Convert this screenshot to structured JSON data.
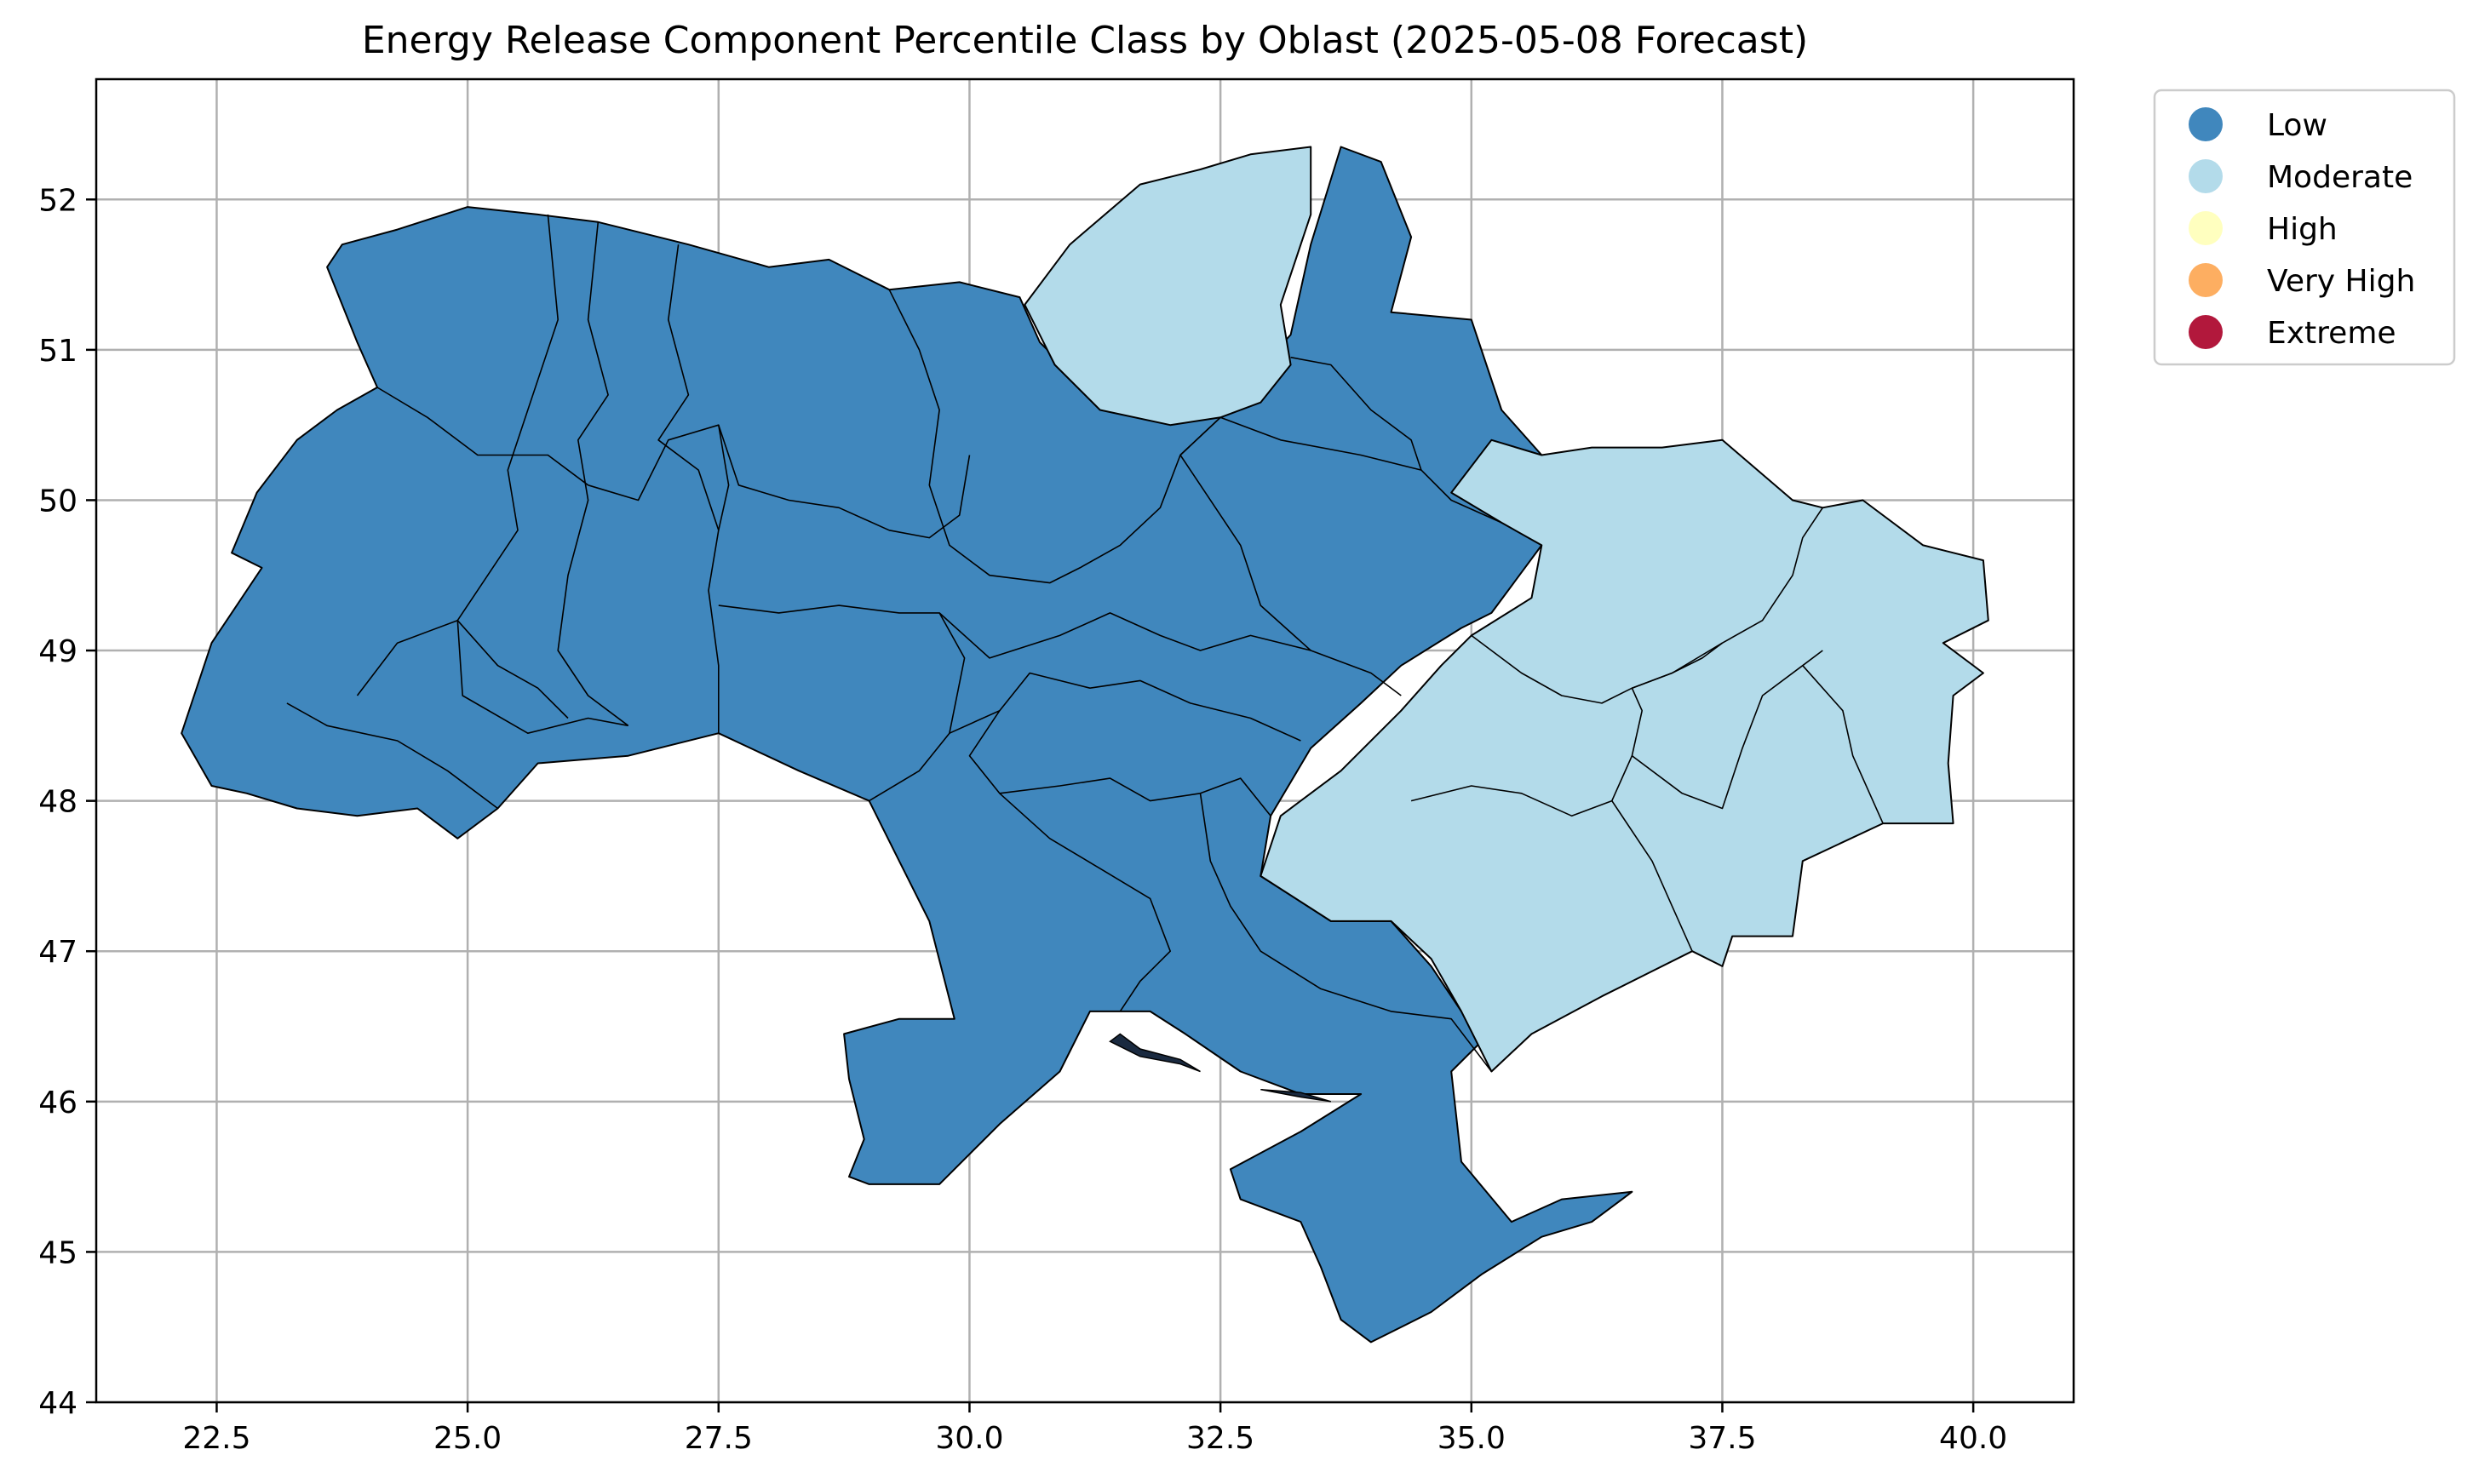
{
  "title": "Energy Release Component Percentile Class by Oblast (2025-05-08 Forecast)",
  "axes": {
    "xlim": [
      21.3,
      41.0
    ],
    "ylim": [
      44.0,
      52.8
    ],
    "xticks": [
      22.5,
      25.0,
      27.5,
      30.0,
      32.5,
      35.0,
      37.5,
      40.0
    ],
    "xtick_labels": [
      "22.5",
      "25.0",
      "27.5",
      "30.0",
      "32.5",
      "35.0",
      "37.5",
      "40.0"
    ],
    "yticks": [
      44,
      45,
      46,
      47,
      48,
      49,
      50,
      51,
      52
    ],
    "ytick_labels": [
      "44",
      "45",
      "46",
      "47",
      "48",
      "49",
      "50",
      "51",
      "52"
    ],
    "grid": true
  },
  "legend": {
    "placement": "upper-right-outside",
    "entries": [
      {
        "label": "Low",
        "color": "#4087bd"
      },
      {
        "label": "Moderate",
        "color": "#b3dbea"
      },
      {
        "label": "High",
        "color": "#ffffbf"
      },
      {
        "label": "Very High",
        "color": "#fdae61"
      },
      {
        "label": "Extreme",
        "color": "#b2183c"
      }
    ]
  },
  "colors": {
    "Low": "#4087bd",
    "Moderate": "#b3dbea",
    "border": "#000000",
    "grid": "#b0b0b0"
  },
  "regions": [
    {
      "class": "Low",
      "points": [
        [
          22.15,
          48.45
        ],
        [
          22.45,
          49.05
        ],
        [
          22.7,
          49.3
        ],
        [
          22.95,
          49.55
        ],
        [
          22.65,
          49.65
        ],
        [
          22.9,
          50.05
        ],
        [
          23.3,
          50.4
        ],
        [
          23.7,
          50.6
        ],
        [
          24.1,
          50.75
        ],
        [
          23.9,
          51.05
        ],
        [
          23.6,
          51.55
        ],
        [
          23.75,
          51.7
        ],
        [
          24.3,
          51.8
        ],
        [
          25.0,
          51.95
        ],
        [
          25.7,
          51.9
        ],
        [
          26.3,
          51.85
        ],
        [
          27.2,
          51.7
        ],
        [
          28.0,
          51.55
        ],
        [
          28.6,
          51.6
        ],
        [
          29.2,
          51.4
        ],
        [
          29.9,
          51.45
        ],
        [
          30.5,
          51.35
        ],
        [
          30.7,
          51.05
        ],
        [
          31.3,
          50.65
        ],
        [
          32.1,
          50.55
        ],
        [
          32.5,
          50.6
        ],
        [
          33.2,
          51.1
        ],
        [
          33.4,
          51.7
        ],
        [
          33.7,
          52.35
        ],
        [
          34.1,
          52.25
        ],
        [
          34.4,
          51.75
        ],
        [
          34.2,
          51.25
        ],
        [
          35.0,
          51.2
        ],
        [
          35.3,
          50.6
        ],
        [
          35.7,
          50.3
        ],
        [
          35.7,
          49.7
        ],
        [
          35.2,
          49.25
        ],
        [
          34.9,
          49.15
        ],
        [
          34.3,
          48.9
        ],
        [
          33.9,
          48.65
        ],
        [
          33.4,
          48.35
        ],
        [
          33.0,
          47.9
        ],
        [
          32.9,
          47.5
        ],
        [
          33.6,
          47.2
        ],
        [
          34.2,
          47.2
        ],
        [
          34.6,
          46.9
        ],
        [
          35.1,
          46.4
        ],
        [
          34.8,
          46.2
        ],
        [
          34.9,
          45.6
        ],
        [
          35.4,
          45.2
        ],
        [
          35.9,
          45.35
        ],
        [
          36.6,
          45.4
        ],
        [
          36.2,
          45.2
        ],
        [
          35.7,
          45.1
        ],
        [
          35.1,
          44.85
        ],
        [
          34.6,
          44.6
        ],
        [
          34.0,
          44.4
        ],
        [
          33.7,
          44.55
        ],
        [
          33.5,
          44.9
        ],
        [
          33.3,
          45.2
        ],
        [
          32.7,
          45.35
        ],
        [
          32.6,
          45.55
        ],
        [
          33.3,
          45.8
        ],
        [
          33.9,
          46.05
        ],
        [
          33.3,
          46.05
        ],
        [
          32.7,
          46.2
        ],
        [
          32.15,
          46.45
        ],
        [
          31.8,
          46.6
        ],
        [
          31.5,
          46.6
        ],
        [
          31.2,
          46.6
        ],
        [
          30.9,
          46.2
        ],
        [
          30.3,
          45.85
        ],
        [
          29.7,
          45.45
        ],
        [
          29.0,
          45.45
        ],
        [
          28.8,
          45.5
        ],
        [
          28.95,
          45.75
        ],
        [
          28.8,
          46.15
        ],
        [
          28.75,
          46.45
        ],
        [
          29.3,
          46.55
        ],
        [
          29.85,
          46.55
        ],
        [
          29.6,
          47.2
        ],
        [
          29.3,
          47.6
        ],
        [
          29.0,
          48.0
        ],
        [
          28.3,
          48.2
        ],
        [
          27.5,
          48.45
        ],
        [
          26.6,
          48.3
        ],
        [
          25.7,
          48.25
        ],
        [
          25.3,
          47.95
        ],
        [
          24.9,
          47.75
        ],
        [
          24.5,
          47.95
        ],
        [
          23.9,
          47.9
        ],
        [
          23.3,
          47.95
        ],
        [
          22.8,
          48.05
        ],
        [
          22.45,
          48.1
        ],
        [
          22.15,
          48.45
        ]
      ]
    },
    {
      "class": "Moderate",
      "points": [
        [
          30.55,
          51.3
        ],
        [
          31.0,
          51.7
        ],
        [
          31.7,
          52.1
        ],
        [
          32.3,
          52.2
        ],
        [
          32.8,
          52.3
        ],
        [
          33.4,
          52.35
        ],
        [
          33.4,
          51.9
        ],
        [
          33.1,
          51.3
        ],
        [
          33.2,
          50.9
        ],
        [
          32.9,
          50.65
        ],
        [
          32.5,
          50.55
        ],
        [
          32.0,
          50.5
        ],
        [
          31.3,
          50.6
        ],
        [
          30.85,
          50.9
        ],
        [
          30.55,
          51.3
        ]
      ]
    },
    {
      "class": "Moderate",
      "points": [
        [
          34.8,
          50.05
        ],
        [
          35.2,
          50.4
        ],
        [
          35.7,
          50.3
        ],
        [
          36.2,
          50.35
        ],
        [
          36.9,
          50.35
        ],
        [
          37.5,
          50.4
        ],
        [
          38.2,
          50.0
        ],
        [
          38.5,
          49.95
        ],
        [
          38.9,
          50.0
        ],
        [
          39.5,
          49.7
        ],
        [
          40.1,
          49.6
        ],
        [
          40.15,
          49.2
        ],
        [
          39.7,
          49.05
        ],
        [
          40.1,
          48.85
        ],
        [
          39.8,
          48.7
        ],
        [
          39.75,
          48.25
        ],
        [
          39.8,
          47.85
        ],
        [
          39.1,
          47.85
        ],
        [
          38.3,
          47.6
        ],
        [
          38.2,
          47.1
        ],
        [
          37.6,
          47.1
        ],
        [
          37.5,
          46.9
        ],
        [
          37.2,
          47.0
        ],
        [
          36.3,
          46.7
        ],
        [
          35.6,
          46.45
        ],
        [
          35.2,
          46.2
        ],
        [
          34.9,
          46.6
        ],
        [
          34.6,
          46.95
        ],
        [
          34.2,
          47.2
        ],
        [
          33.6,
          47.2
        ],
        [
          32.9,
          47.5
        ],
        [
          33.1,
          47.9
        ],
        [
          33.7,
          48.2
        ],
        [
          34.3,
          48.6
        ],
        [
          34.7,
          48.9
        ],
        [
          35.0,
          49.1
        ],
        [
          35.6,
          49.35
        ],
        [
          35.7,
          49.7
        ],
        [
          35.3,
          49.85
        ],
        [
          34.8,
          50.05
        ]
      ]
    }
  ],
  "borders": [
    [
      [
        25.8,
        51.9
      ],
      [
        25.9,
        51.2
      ],
      [
        25.6,
        50.6
      ],
      [
        25.4,
        50.2
      ],
      [
        25.5,
        49.8
      ],
      [
        25.2,
        49.5
      ],
      [
        24.9,
        49.2
      ],
      [
        24.3,
        49.05
      ],
      [
        23.9,
        48.7
      ]
    ],
    [
      [
        24.1,
        50.75
      ],
      [
        24.6,
        50.55
      ],
      [
        25.1,
        50.3
      ],
      [
        25.8,
        50.3
      ],
      [
        26.2,
        50.1
      ]
    ],
    [
      [
        26.3,
        51.85
      ],
      [
        26.2,
        51.2
      ],
      [
        26.4,
        50.7
      ],
      [
        26.1,
        50.4
      ],
      [
        26.2,
        50.0
      ],
      [
        26.0,
        49.5
      ],
      [
        25.9,
        49.0
      ],
      [
        26.2,
        48.7
      ],
      [
        26.6,
        48.5
      ]
    ],
    [
      [
        27.1,
        51.7
      ],
      [
        27.0,
        51.2
      ],
      [
        27.2,
        50.7
      ],
      [
        26.9,
        50.4
      ],
      [
        27.3,
        50.2
      ],
      [
        27.5,
        49.8
      ]
    ],
    [
      [
        26.2,
        50.1
      ],
      [
        26.7,
        50.0
      ],
      [
        27.0,
        50.4
      ],
      [
        27.5,
        50.5
      ],
      [
        27.6,
        50.1
      ],
      [
        27.5,
        49.8
      ],
      [
        27.4,
        49.4
      ],
      [
        27.5,
        48.9
      ],
      [
        27.5,
        48.45
      ]
    ],
    [
      [
        24.9,
        49.2
      ],
      [
        24.95,
        48.7
      ],
      [
        25.6,
        48.45
      ],
      [
        26.2,
        48.55
      ],
      [
        26.6,
        48.5
      ]
    ],
    [
      [
        24.9,
        49.2
      ],
      [
        25.3,
        48.9
      ],
      [
        25.7,
        48.75
      ],
      [
        26.0,
        48.55
      ]
    ],
    [
      [
        23.2,
        48.65
      ],
      [
        23.6,
        48.5
      ],
      [
        24.3,
        48.4
      ],
      [
        24.8,
        48.2
      ],
      [
        25.3,
        47.95
      ]
    ],
    [
      [
        27.5,
        50.5
      ],
      [
        27.7,
        50.1
      ],
      [
        28.2,
        50.0
      ],
      [
        28.7,
        49.95
      ],
      [
        29.2,
        49.8
      ],
      [
        29.6,
        49.75
      ],
      [
        29.9,
        49.9
      ],
      [
        30.0,
        50.3
      ]
    ],
    [
      [
        29.2,
        51.4
      ],
      [
        29.5,
        51.0
      ],
      [
        29.7,
        50.6
      ],
      [
        29.6,
        50.1
      ],
      [
        29.8,
        49.7
      ],
      [
        30.2,
        49.5
      ],
      [
        30.8,
        49.45
      ],
      [
        31.1,
        49.55
      ],
      [
        31.5,
        49.7
      ],
      [
        31.9,
        49.95
      ],
      [
        32.1,
        50.3
      ],
      [
        32.5,
        50.55
      ]
    ],
    [
      [
        27.5,
        49.3
      ],
      [
        28.1,
        49.25
      ],
      [
        28.7,
        49.3
      ],
      [
        29.3,
        49.25
      ],
      [
        29.7,
        49.25
      ],
      [
        29.95,
        48.95
      ],
      [
        29.8,
        48.45
      ],
      [
        29.5,
        48.2
      ],
      [
        29.0,
        48.0
      ]
    ],
    [
      [
        29.7,
        49.25
      ],
      [
        30.2,
        48.95
      ],
      [
        30.9,
        49.1
      ],
      [
        31.4,
        49.25
      ],
      [
        31.9,
        49.1
      ],
      [
        32.3,
        49.0
      ],
      [
        32.8,
        49.1
      ],
      [
        33.4,
        49.0
      ],
      [
        34.0,
        48.85
      ],
      [
        34.3,
        48.7
      ]
    ],
    [
      [
        30.3,
        48.6
      ],
      [
        30.6,
        48.85
      ],
      [
        31.2,
        48.75
      ],
      [
        31.7,
        48.8
      ],
      [
        32.2,
        48.65
      ],
      [
        32.8,
        48.55
      ],
      [
        33.3,
        48.4
      ]
    ],
    [
      [
        29.8,
        48.45
      ],
      [
        30.3,
        48.6
      ],
      [
        30.0,
        48.3
      ],
      [
        30.3,
        48.05
      ],
      [
        30.8,
        47.75
      ],
      [
        31.3,
        47.55
      ],
      [
        31.8,
        47.35
      ],
      [
        32.0,
        47.0
      ],
      [
        31.7,
        46.8
      ],
      [
        31.5,
        46.6
      ]
    ],
    [
      [
        30.3,
        48.05
      ],
      [
        30.9,
        48.1
      ],
      [
        31.4,
        48.15
      ],
      [
        31.8,
        48.0
      ],
      [
        32.3,
        48.05
      ],
      [
        32.7,
        48.15
      ],
      [
        33.0,
        47.9
      ]
    ],
    [
      [
        32.3,
        48.05
      ],
      [
        32.4,
        47.6
      ],
      [
        32.6,
        47.3
      ],
      [
        32.9,
        47.0
      ],
      [
        33.5,
        46.75
      ],
      [
        34.2,
        46.6
      ],
      [
        34.8,
        46.55
      ],
      [
        35.2,
        46.2
      ]
    ],
    [
      [
        32.1,
        50.3
      ],
      [
        32.5,
        50.55
      ],
      [
        33.1,
        50.4
      ],
      [
        33.9,
        50.3
      ],
      [
        34.5,
        50.2
      ],
      [
        34.8,
        50.0
      ],
      [
        35.3,
        49.85
      ]
    ],
    [
      [
        32.1,
        50.3
      ],
      [
        32.7,
        49.7
      ],
      [
        32.9,
        49.3
      ],
      [
        33.4,
        49.0
      ]
    ],
    [
      [
        33.2,
        50.95
      ],
      [
        33.6,
        50.9
      ],
      [
        34.0,
        50.6
      ],
      [
        34.4,
        50.4
      ],
      [
        34.5,
        50.2
      ]
    ],
    [
      [
        35.0,
        49.1
      ],
      [
        35.5,
        48.85
      ],
      [
        35.9,
        48.7
      ],
      [
        36.3,
        48.65
      ],
      [
        36.6,
        48.75
      ],
      [
        37.0,
        48.85
      ],
      [
        37.5,
        49.05
      ],
      [
        37.9,
        49.2
      ],
      [
        38.2,
        49.5
      ],
      [
        38.3,
        49.75
      ],
      [
        38.5,
        49.95
      ]
    ],
    [
      [
        34.4,
        48.0
      ],
      [
        35.0,
        48.1
      ],
      [
        35.5,
        48.05
      ],
      [
        36.0,
        47.9
      ],
      [
        36.4,
        48.0
      ],
      [
        36.6,
        48.3
      ],
      [
        36.7,
        48.6
      ],
      [
        36.6,
        48.75
      ]
    ],
    [
      [
        36.6,
        48.75
      ],
      [
        37.0,
        48.85
      ],
      [
        37.3,
        48.95
      ],
      [
        37.5,
        49.05
      ]
    ],
    [
      [
        36.6,
        48.3
      ],
      [
        37.1,
        48.05
      ],
      [
        37.5,
        47.95
      ],
      [
        37.7,
        48.35
      ],
      [
        37.9,
        48.7
      ],
      [
        38.3,
        48.9
      ],
      [
        38.5,
        49.0
      ]
    ],
    [
      [
        36.4,
        48.0
      ],
      [
        36.8,
        47.6
      ],
      [
        37.0,
        47.3
      ],
      [
        37.2,
        47.0
      ]
    ],
    [
      [
        38.3,
        48.9
      ],
      [
        38.7,
        48.6
      ],
      [
        38.8,
        48.3
      ],
      [
        39.1,
        47.85
      ]
    ]
  ],
  "water": [
    [
      [
        31.4,
        46.4
      ],
      [
        31.7,
        46.3
      ],
      [
        32.1,
        46.25
      ],
      [
        32.3,
        46.2
      ],
      [
        32.1,
        46.28
      ],
      [
        31.7,
        46.35
      ],
      [
        31.5,
        46.45
      ],
      [
        31.4,
        46.4
      ]
    ],
    [
      [
        32.9,
        46.08
      ],
      [
        33.3,
        46.03
      ],
      [
        33.6,
        46.0
      ],
      [
        33.3,
        46.06
      ],
      [
        32.9,
        46.08
      ]
    ]
  ]
}
